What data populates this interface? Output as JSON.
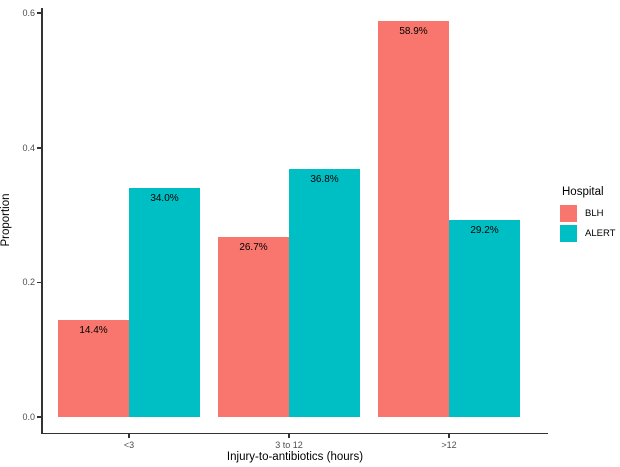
{
  "chart_data": {
    "type": "bar",
    "title": "",
    "categories": [
      "<3",
      "3 to 12",
      ">12"
    ],
    "series": [
      {
        "name": "BLH",
        "color": "#F8766D",
        "values": [
          0.144,
          0.267,
          0.589
        ],
        "labels": [
          "14.4%",
          "26.7%",
          "58.9%"
        ]
      },
      {
        "name": "ALERT",
        "color": "#00BFC4",
        "values": [
          0.34,
          0.368,
          0.292
        ],
        "labels": [
          "34.0%",
          "36.8%",
          "29.2%"
        ]
      }
    ],
    "xlabel": "Injury-to-antibiotics (hours)",
    "ylabel": "Proportion",
    "ylim": [
      0,
      0.62
    ],
    "yticks": [
      "0.0",
      "0.2",
      "0.4",
      "0.6"
    ],
    "grid": false,
    "legend": {
      "title": "Hospital",
      "position": "right"
    }
  }
}
